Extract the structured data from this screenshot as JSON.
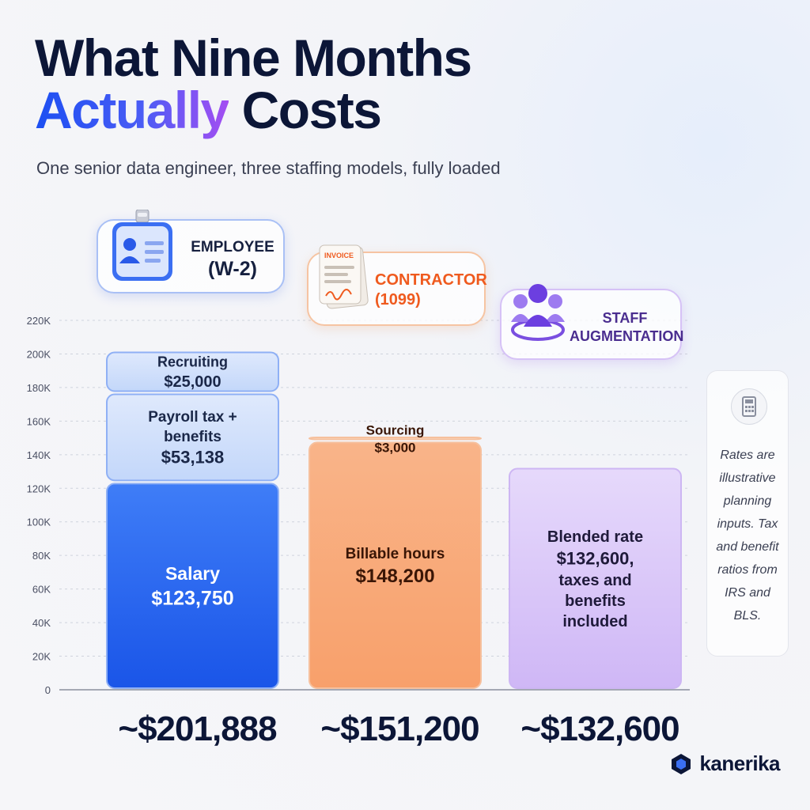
{
  "title": {
    "line1": "What Nine Months",
    "line2_accent": "Actually",
    "line2_rest": " Costs"
  },
  "subtitle": "One senior data engineer, three staffing models, fully loaded",
  "headers": {
    "employee": {
      "line1": "EMPLOYEE",
      "line2": "(W-2)"
    },
    "contractor": {
      "line1": "CONTRACTOR",
      "line2": "(1099)",
      "invoice_label": "INVOICE"
    },
    "staff_aug": {
      "line1": "STAFF",
      "line2": "AUGMENTATION"
    }
  },
  "note": "Rates are illustrative planning inputs. Tax and benefit ratios from IRS and BLS.",
  "brand": "kanerika",
  "colors": {
    "employee_dark": "#1f5ff2",
    "employee_light": "#cfe0fb",
    "contractor_dark": "#f7a46f",
    "contractor_light": "#fde4d2",
    "staff_aug": "#d8c5f8",
    "title": "#0c1637"
  },
  "icons": [
    "id-badge-icon",
    "invoice-icon",
    "team-icon",
    "calculator-icon",
    "kanerika-logo-icon"
  ],
  "chart_data": {
    "type": "bar",
    "stacked": true,
    "categories": [
      "EMPLOYEE (W-2)",
      "CONTRACTOR (1099)",
      "STAFF AUGMENTATION"
    ],
    "ylim": [
      0,
      220000
    ],
    "yticks": [
      0,
      20000,
      40000,
      60000,
      80000,
      100000,
      120000,
      140000,
      160000,
      180000,
      200000,
      220000
    ],
    "ytick_labels": [
      "0",
      "20K",
      "40K",
      "60K",
      "80K",
      "100K",
      "120K",
      "140K",
      "160K",
      "180K",
      "200K",
      "220K"
    ],
    "grid": true,
    "bars": [
      {
        "segments": [
          {
            "label_lines": [
              "Salary",
              "$123,750"
            ],
            "value": 123750
          },
          {
            "label_lines": [
              "Payroll tax +",
              "benefits",
              "$53,138"
            ],
            "value": 53138
          },
          {
            "label_lines": [
              "Recruiting",
              "$25,000"
            ],
            "value": 25000
          }
        ],
        "total_label": "~$201,888"
      },
      {
        "segments": [
          {
            "label_lines": [
              "Billable hours",
              "$148,200"
            ],
            "value": 148200
          },
          {
            "label_lines": [
              "Sourcing",
              "$3,000"
            ],
            "value": 3000
          }
        ],
        "total_label": "~$151,200"
      },
      {
        "segments": [
          {
            "label_lines": [
              "Blended rate",
              "$132,600,",
              "taxes and",
              "benefits",
              "included"
            ],
            "value": 132600
          }
        ],
        "total_label": "~$132,600"
      }
    ]
  }
}
